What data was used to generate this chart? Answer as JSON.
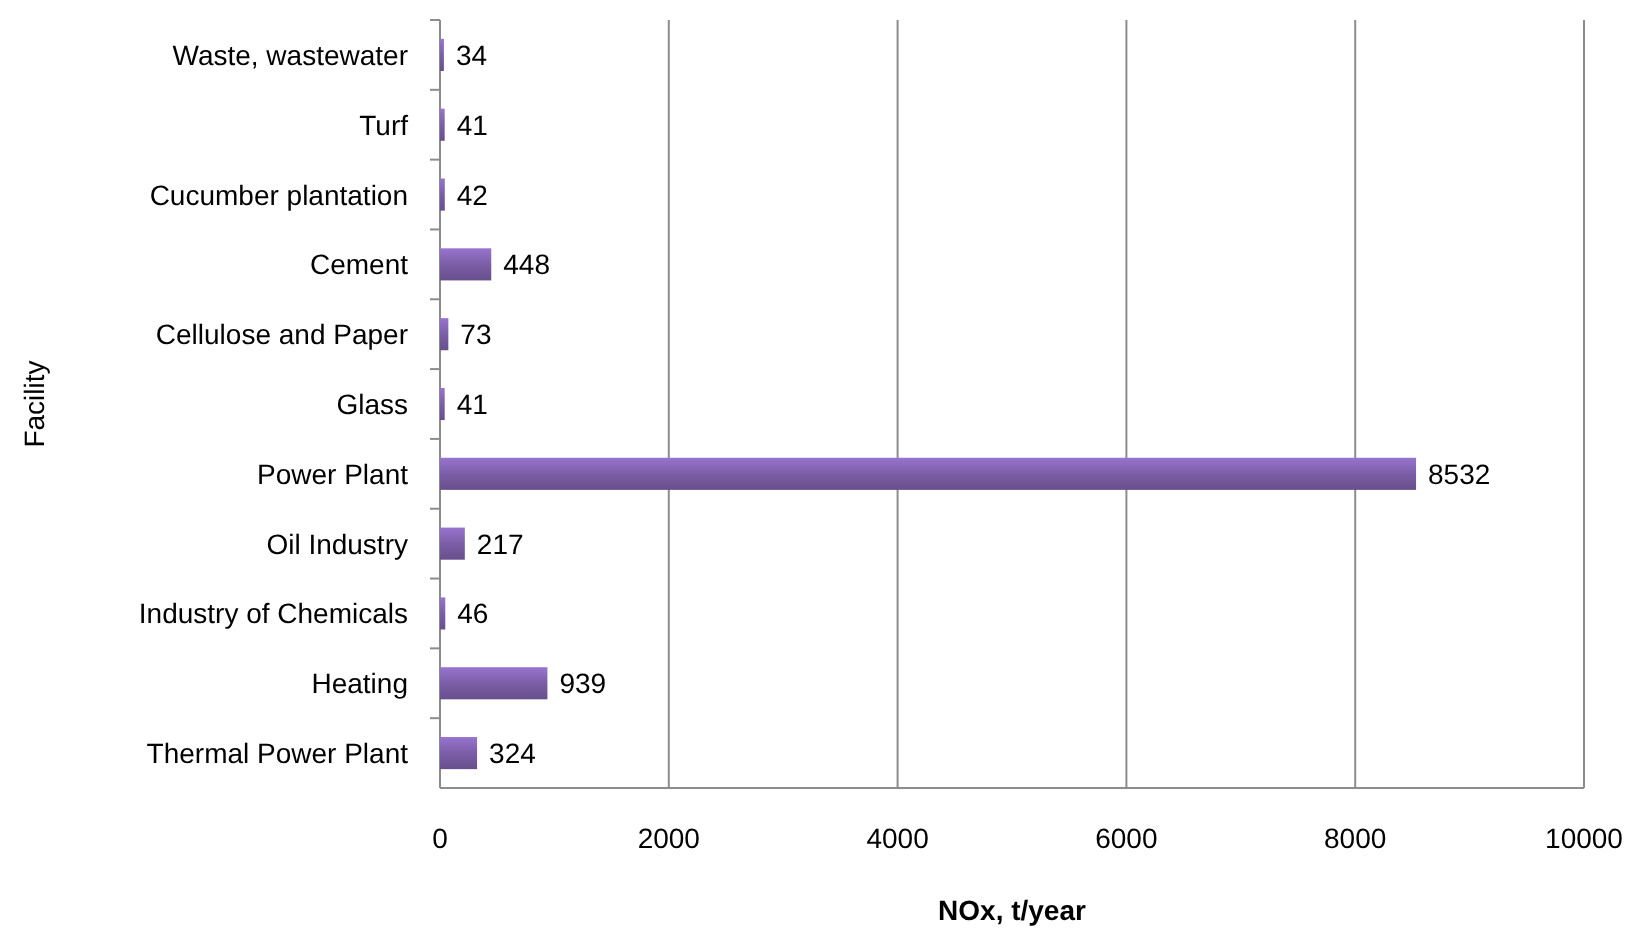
{
  "chart_data": {
    "type": "bar",
    "orientation": "horizontal",
    "xlabel": "NOx, t/year",
    "ylabel": "Facility",
    "categories": [
      "Waste, wastewater",
      "Turf",
      "Cucumber plantation",
      "Cement",
      "Cellulose and Paper",
      "Glass",
      "Power Plant",
      "Oil Industry",
      "Industry of Chemicals",
      "Heating",
      "Thermal Power Plant"
    ],
    "values": [
      34,
      41,
      42,
      448,
      73,
      41,
      8532,
      217,
      46,
      939,
      324
    ],
    "color": "#7b5ea7",
    "xlim": [
      0,
      10000
    ],
    "xticks": [
      0,
      2000,
      4000,
      6000,
      8000,
      10000
    ],
    "grid": "x",
    "data_labels": true
  }
}
